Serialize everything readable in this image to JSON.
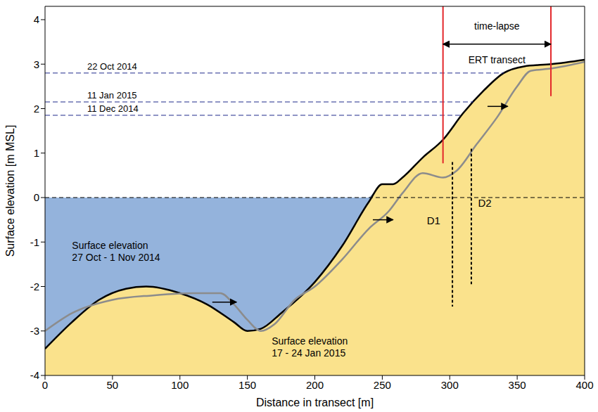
{
  "chart_data": {
    "type": "line",
    "x_label": "Distance in transect [m]",
    "y_label": "Surface elevation [m MSL]",
    "xlim": [
      0,
      400
    ],
    "xticks": [
      0,
      50,
      100,
      150,
      200,
      250,
      300,
      350,
      400
    ],
    "ylim": [
      -4,
      4.3
    ],
    "yticks": [
      -4,
      -3,
      -2,
      -1,
      0,
      1,
      2,
      3,
      4
    ],
    "sea_level": 0,
    "series": [
      {
        "name": "Surface elevation 27 Oct - 1 Nov 2014",
        "color": "#000000",
        "x": [
          0,
          20,
          40,
          60,
          75,
          100,
          120,
          140,
          150,
          160,
          175,
          200,
          220,
          240,
          250,
          258,
          265,
          280,
          295,
          310,
          325,
          340,
          355,
          375,
          400
        ],
        "values": [
          -3.4,
          -2.8,
          -2.3,
          -2.05,
          -2.0,
          -2.15,
          -2.4,
          -2.8,
          -3.0,
          -2.95,
          -2.6,
          -1.9,
          -1.1,
          -0.1,
          0.3,
          0.3,
          0.45,
          0.9,
          1.3,
          1.9,
          2.4,
          2.8,
          2.95,
          3.0,
          3.1
        ]
      },
      {
        "name": "Surface elevation 17 - 24 Jan 2015",
        "color": "#8c8c8c",
        "x": [
          0,
          20,
          50,
          80,
          110,
          130,
          140,
          150,
          160,
          170,
          185,
          200,
          220,
          240,
          255,
          265,
          280,
          295,
          305,
          320,
          335,
          350,
          360,
          375,
          400
        ],
        "values": [
          -3.0,
          -2.6,
          -2.3,
          -2.2,
          -2.15,
          -2.15,
          -2.4,
          -2.75,
          -3.0,
          -2.85,
          -2.3,
          -2.0,
          -1.4,
          -0.7,
          -0.3,
          0.1,
          0.55,
          0.45,
          0.6,
          1.2,
          1.8,
          2.5,
          2.85,
          2.9,
          3.05
        ]
      }
    ],
    "water_levels": [
      {
        "label": "22 Oct 2014",
        "value": 2.8
      },
      {
        "label": "11 Jan 2015",
        "value": 2.15
      },
      {
        "label": "11 Dec 2014",
        "value": 1.85
      }
    ],
    "ert_transect": {
      "label": "time-lapse ERT transect",
      "x": [
        295,
        375
      ],
      "bottoms": [
        0.77,
        2.28
      ]
    },
    "boreholes": [
      {
        "name": "D1",
        "x": 302,
        "top": 0.8,
        "bottom": -2.45
      },
      {
        "name": "D2",
        "x": 316,
        "top": 1.1,
        "bottom": -1.95
      }
    ]
  }
}
